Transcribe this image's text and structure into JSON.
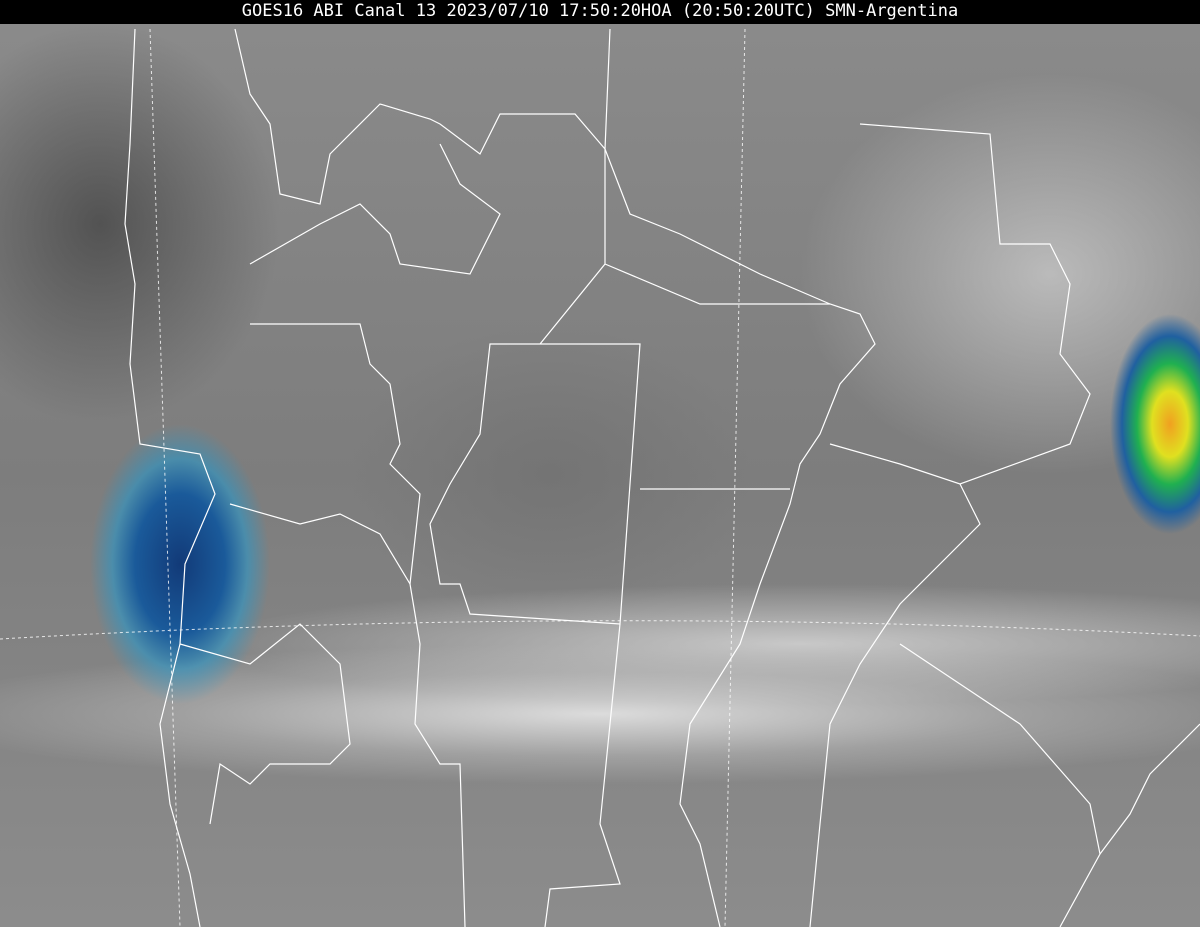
{
  "title": "GOES16 ABI Canal 13 2023/07/10 17:50:20HOA (20:50:20UTC) SMN-Argentina",
  "image": {
    "satellite": "GOES16",
    "instrument": "ABI",
    "channel": "13",
    "colors": {
      "background": "#000000",
      "title_text": "#ffffff",
      "boundaries": "#ffffff"
    }
  }
}
